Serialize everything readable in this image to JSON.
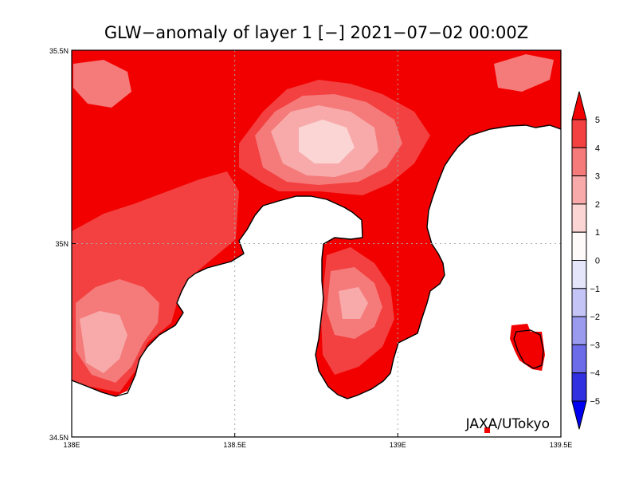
{
  "title": "GLW−anomaly of layer 1 [−] 2021−07−02 00:00Z",
  "credit": "JAXA/UTokyo",
  "map": {
    "lon_range": [
      138.0,
      139.5
    ],
    "lat_range": [
      34.5,
      35.5
    ],
    "lon_ticks": [
      "138E",
      "138.5E",
      "139E",
      "139.5E"
    ],
    "lat_ticks": [
      "35.5N",
      "35N",
      "34.5N"
    ],
    "grid": "dotted at 138.5E, 139E and 35N"
  },
  "colorbar": {
    "labels": [
      "5",
      "4",
      "3",
      "2",
      "1",
      "0",
      "−1",
      "−2",
      "−3",
      "−4",
      "−5"
    ],
    "colors": [
      "#f20000",
      "#f34040",
      "#f57a7a",
      "#f8aaaa",
      "#fbd4d4",
      "#fffafa",
      "#e6e6fb",
      "#c4c4f6",
      "#9a9aef",
      "#6c6ce8",
      "#3030e0",
      "#0000f0"
    ],
    "extend": "both"
  },
  "colors": {
    "land_max": "#ff0000",
    "coast": "#000000",
    "sea": "#ffffff"
  }
}
